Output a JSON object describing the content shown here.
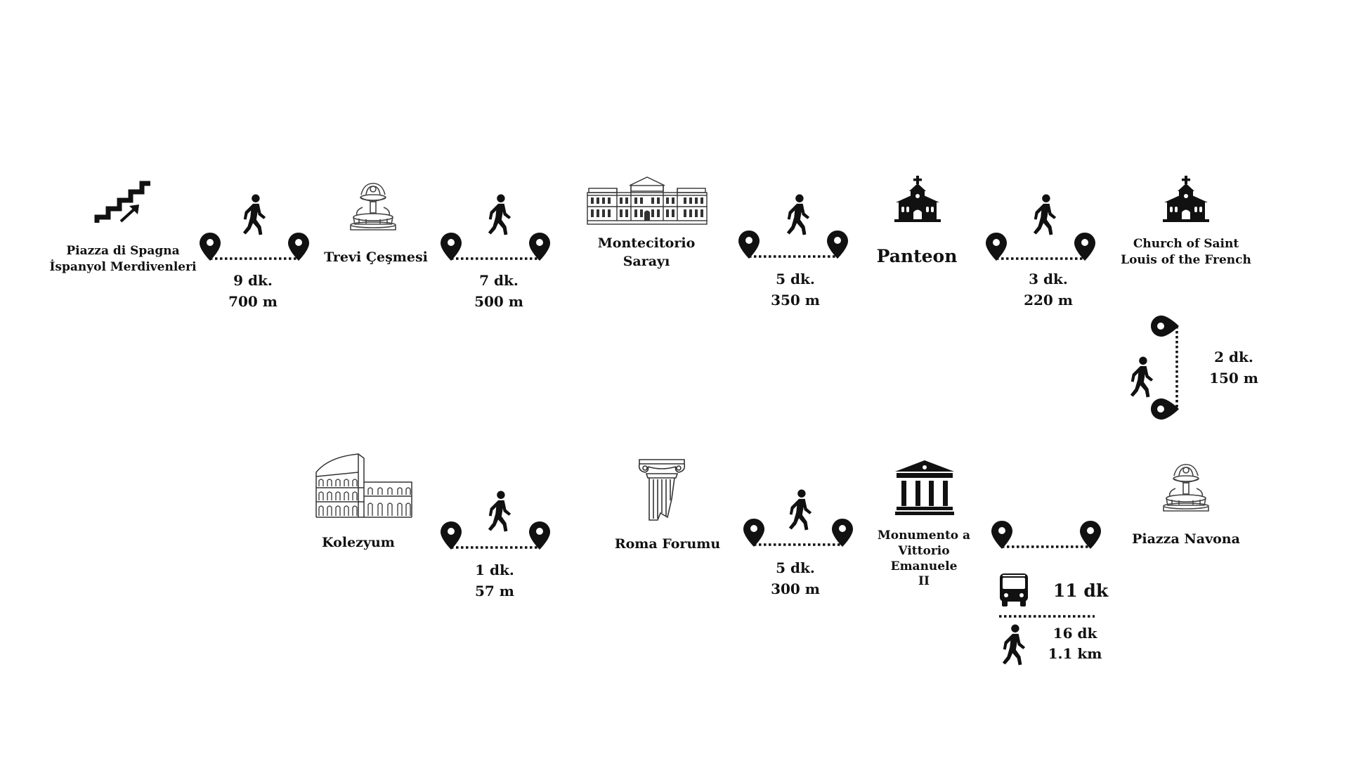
{
  "landmarks": [
    {
      "id": "piazza-di-spagna",
      "icon": "stairs-icon",
      "lines": [
        "Piazza di Spagna",
        "İspanyol Merdivenleri"
      ]
    },
    {
      "id": "trevi",
      "icon": "fountain-icon",
      "lines": [
        "Trevi Çeşmesi"
      ]
    },
    {
      "id": "montecitorio",
      "icon": "palace-icon",
      "lines": [
        "Montecitorio",
        "Sarayı"
      ]
    },
    {
      "id": "panteon",
      "icon": "church-icon",
      "lines": [
        "Panteon"
      ]
    },
    {
      "id": "saint-louis",
      "icon": "church-icon",
      "lines": [
        "Church of Saint",
        "Louis of the French"
      ]
    },
    {
      "id": "piazza-navona",
      "icon": "fountain-icon",
      "lines": [
        "Piazza Navona"
      ]
    },
    {
      "id": "vittorio-emanuele",
      "icon": "monument-icon",
      "lines": [
        "Monumento a",
        "Vittorio Emanuele",
        "II"
      ]
    },
    {
      "id": "roma-forumu",
      "icon": "column-icon",
      "lines": [
        "Roma Forumu"
      ]
    },
    {
      "id": "kolezyum",
      "icon": "colosseum-icon",
      "lines": [
        "Kolezyum"
      ]
    }
  ],
  "legs": [
    {
      "id": "leg-1",
      "mode": "walking-icon",
      "time": "9 dk.",
      "distance": "700 m"
    },
    {
      "id": "leg-2",
      "mode": "walking-icon",
      "time": "7 dk.",
      "distance": "500 m"
    },
    {
      "id": "leg-3",
      "mode": "walking-icon",
      "time": "5 dk.",
      "distance": "350 m"
    },
    {
      "id": "leg-4",
      "mode": "walking-icon",
      "time": "3 dk.",
      "distance": "220 m"
    },
    {
      "id": "leg-5",
      "mode": "walking-icon",
      "time": "2 dk.",
      "distance": "150 m"
    },
    {
      "id": "leg-6",
      "mode": "bus-or-walk",
      "bus_time": "11 dk",
      "walk_time": "16 dk",
      "walk_distance": "1.1 km"
    },
    {
      "id": "leg-7",
      "mode": "walking-icon",
      "time": "5 dk.",
      "distance": "300 m"
    },
    {
      "id": "leg-8",
      "mode": "walking-icon",
      "time": "1 dk.",
      "distance": "57 m"
    }
  ],
  "colors": {
    "ink": "#111111",
    "background": "#ffffff"
  }
}
